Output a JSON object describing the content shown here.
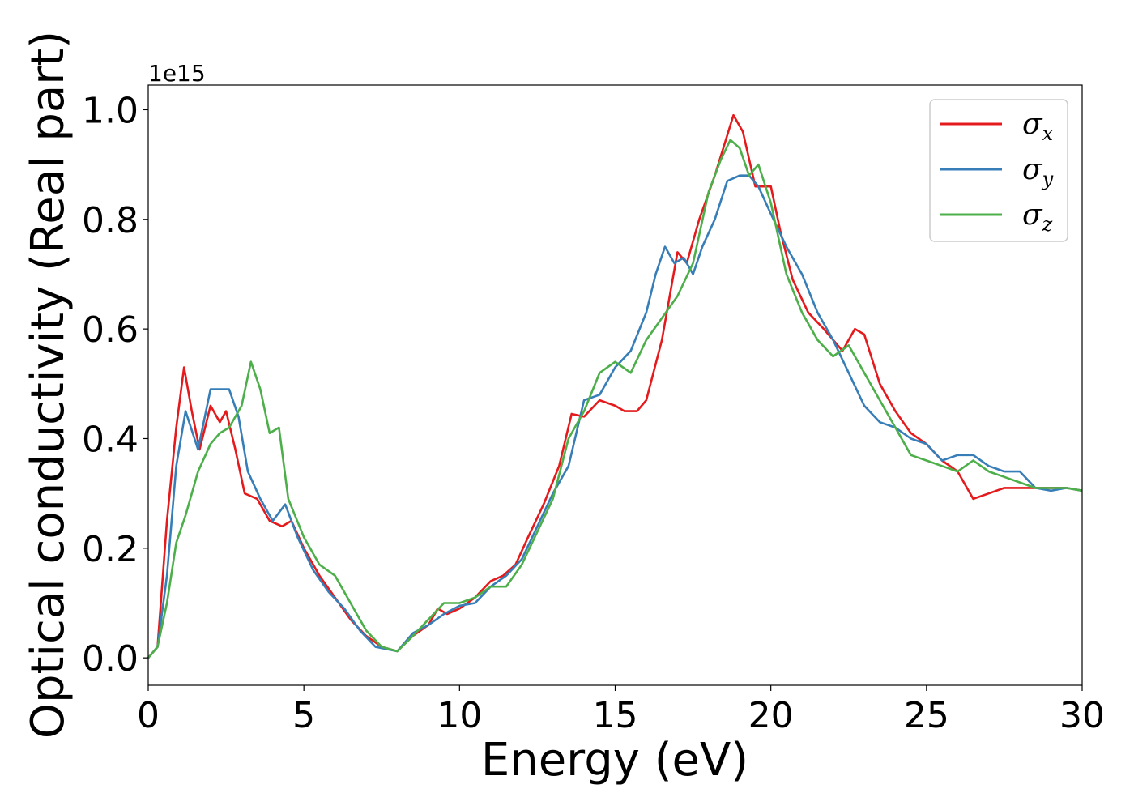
{
  "chart_data": {
    "type": "line",
    "xlabel": "Energy (eV)",
    "ylabel": "Optical conductivity (Real part)",
    "y_offset_text": "1e15",
    "xlim": [
      0,
      30
    ],
    "ylim": [
      -0.05,
      1.045
    ],
    "x_ticks": [
      0,
      5,
      10,
      15,
      20,
      25,
      30
    ],
    "x_tick_labels": [
      "0",
      "5",
      "10",
      "15",
      "20",
      "25",
      "30"
    ],
    "y_ticks": [
      0.0,
      0.2,
      0.4,
      0.6,
      0.8,
      1.0
    ],
    "y_tick_labels": [
      "0.0",
      "0.2",
      "0.4",
      "0.6",
      "0.8",
      "1.0"
    ],
    "grid": false,
    "legend_position": "top-right",
    "series": [
      {
        "name": "σx",
        "symbol": "σ",
        "subscript": "x",
        "color": "#e41a1c",
        "points": [
          [
            0,
            0
          ],
          [
            0.3,
            0.02
          ],
          [
            0.6,
            0.25
          ],
          [
            0.9,
            0.42
          ],
          [
            1.15,
            0.53
          ],
          [
            1.4,
            0.45
          ],
          [
            1.65,
            0.38
          ],
          [
            2.0,
            0.46
          ],
          [
            2.3,
            0.43
          ],
          [
            2.5,
            0.45
          ],
          [
            2.8,
            0.38
          ],
          [
            3.1,
            0.3
          ],
          [
            3.5,
            0.29
          ],
          [
            3.9,
            0.25
          ],
          [
            4.3,
            0.24
          ],
          [
            4.6,
            0.25
          ],
          [
            5.0,
            0.2
          ],
          [
            5.5,
            0.15
          ],
          [
            6.0,
            0.11
          ],
          [
            6.5,
            0.07
          ],
          [
            7.0,
            0.04
          ],
          [
            7.5,
            0.02
          ],
          [
            8.0,
            0.012
          ],
          [
            8.5,
            0.04
          ],
          [
            9.0,
            0.06
          ],
          [
            9.3,
            0.09
          ],
          [
            9.6,
            0.08
          ],
          [
            10.0,
            0.09
          ],
          [
            10.5,
            0.11
          ],
          [
            11.0,
            0.14
          ],
          [
            11.4,
            0.15
          ],
          [
            11.8,
            0.17
          ],
          [
            12.2,
            0.22
          ],
          [
            12.7,
            0.28
          ],
          [
            13.2,
            0.35
          ],
          [
            13.6,
            0.445
          ],
          [
            14.0,
            0.44
          ],
          [
            14.5,
            0.47
          ],
          [
            15.0,
            0.46
          ],
          [
            15.3,
            0.45
          ],
          [
            15.7,
            0.45
          ],
          [
            16.0,
            0.47
          ],
          [
            16.5,
            0.58
          ],
          [
            17.0,
            0.74
          ],
          [
            17.3,
            0.72
          ],
          [
            17.7,
            0.8
          ],
          [
            18.2,
            0.88
          ],
          [
            18.8,
            0.99
          ],
          [
            19.1,
            0.96
          ],
          [
            19.5,
            0.86
          ],
          [
            20.0,
            0.86
          ],
          [
            20.3,
            0.78
          ],
          [
            20.7,
            0.69
          ],
          [
            21.2,
            0.63
          ],
          [
            21.7,
            0.6
          ],
          [
            22.3,
            0.56
          ],
          [
            22.7,
            0.6
          ],
          [
            23.0,
            0.59
          ],
          [
            23.5,
            0.5
          ],
          [
            24.0,
            0.45
          ],
          [
            24.5,
            0.41
          ],
          [
            25.0,
            0.39
          ],
          [
            25.5,
            0.36
          ],
          [
            26.0,
            0.34
          ],
          [
            26.5,
            0.29
          ],
          [
            27.0,
            0.3
          ],
          [
            27.5,
            0.31
          ],
          [
            28.0,
            0.31
          ],
          [
            28.5,
            0.31
          ],
          [
            29.0,
            0.31
          ],
          [
            29.5,
            0.31
          ],
          [
            30.0,
            0.305
          ]
        ]
      },
      {
        "name": "σy",
        "symbol": "σ",
        "subscript": "y",
        "color": "#377eb8",
        "points": [
          [
            0,
            0
          ],
          [
            0.3,
            0.02
          ],
          [
            0.6,
            0.15
          ],
          [
            0.9,
            0.35
          ],
          [
            1.2,
            0.45
          ],
          [
            1.6,
            0.38
          ],
          [
            2.0,
            0.49
          ],
          [
            2.3,
            0.49
          ],
          [
            2.6,
            0.49
          ],
          [
            2.9,
            0.44
          ],
          [
            3.2,
            0.34
          ],
          [
            3.6,
            0.29
          ],
          [
            4.0,
            0.25
          ],
          [
            4.4,
            0.28
          ],
          [
            4.8,
            0.22
          ],
          [
            5.3,
            0.16
          ],
          [
            5.8,
            0.12
          ],
          [
            6.3,
            0.09
          ],
          [
            6.8,
            0.05
          ],
          [
            7.3,
            0.02
          ],
          [
            8.0,
            0.012
          ],
          [
            8.5,
            0.045
          ],
          [
            9.0,
            0.06
          ],
          [
            9.5,
            0.08
          ],
          [
            10.0,
            0.095
          ],
          [
            10.5,
            0.1
          ],
          [
            11.0,
            0.13
          ],
          [
            11.5,
            0.15
          ],
          [
            12.0,
            0.18
          ],
          [
            12.5,
            0.24
          ],
          [
            13.0,
            0.3
          ],
          [
            13.5,
            0.35
          ],
          [
            14.0,
            0.47
          ],
          [
            14.5,
            0.48
          ],
          [
            15.0,
            0.53
          ],
          [
            15.5,
            0.56
          ],
          [
            16.0,
            0.63
          ],
          [
            16.3,
            0.7
          ],
          [
            16.6,
            0.75
          ],
          [
            16.9,
            0.72
          ],
          [
            17.2,
            0.73
          ],
          [
            17.5,
            0.7
          ],
          [
            17.8,
            0.75
          ],
          [
            18.2,
            0.8
          ],
          [
            18.6,
            0.87
          ],
          [
            19.0,
            0.88
          ],
          [
            19.3,
            0.88
          ],
          [
            19.6,
            0.86
          ],
          [
            20.0,
            0.81
          ],
          [
            20.5,
            0.75
          ],
          [
            21.0,
            0.7
          ],
          [
            21.5,
            0.63
          ],
          [
            22.0,
            0.58
          ],
          [
            22.5,
            0.52
          ],
          [
            23.0,
            0.46
          ],
          [
            23.5,
            0.43
          ],
          [
            24.0,
            0.42
          ],
          [
            24.5,
            0.4
          ],
          [
            25.0,
            0.39
          ],
          [
            25.5,
            0.36
          ],
          [
            26.0,
            0.37
          ],
          [
            26.5,
            0.37
          ],
          [
            27.0,
            0.35
          ],
          [
            27.5,
            0.34
          ],
          [
            28.0,
            0.34
          ],
          [
            28.5,
            0.31
          ],
          [
            29.0,
            0.305
          ],
          [
            29.5,
            0.31
          ],
          [
            30.0,
            0.305
          ]
        ]
      },
      {
        "name": "σz",
        "symbol": "σ",
        "subscript": "z",
        "color": "#4daf4a",
        "points": [
          [
            0,
            0
          ],
          [
            0.3,
            0.02
          ],
          [
            0.6,
            0.1
          ],
          [
            0.9,
            0.21
          ],
          [
            1.2,
            0.26
          ],
          [
            1.6,
            0.34
          ],
          [
            2.0,
            0.39
          ],
          [
            2.3,
            0.41
          ],
          [
            2.6,
            0.42
          ],
          [
            3.0,
            0.46
          ],
          [
            3.3,
            0.54
          ],
          [
            3.6,
            0.49
          ],
          [
            3.9,
            0.41
          ],
          [
            4.2,
            0.42
          ],
          [
            4.5,
            0.29
          ],
          [
            5.0,
            0.22
          ],
          [
            5.5,
            0.17
          ],
          [
            6.0,
            0.15
          ],
          [
            6.5,
            0.1
          ],
          [
            7.0,
            0.05
          ],
          [
            7.5,
            0.02
          ],
          [
            8.0,
            0.012
          ],
          [
            8.5,
            0.04
          ],
          [
            9.0,
            0.07
          ],
          [
            9.5,
            0.1
          ],
          [
            10.0,
            0.1
          ],
          [
            10.5,
            0.11
          ],
          [
            11.0,
            0.13
          ],
          [
            11.5,
            0.13
          ],
          [
            12.0,
            0.17
          ],
          [
            12.5,
            0.23
          ],
          [
            13.0,
            0.29
          ],
          [
            13.5,
            0.4
          ],
          [
            14.0,
            0.45
          ],
          [
            14.5,
            0.52
          ],
          [
            15.0,
            0.54
          ],
          [
            15.5,
            0.52
          ],
          [
            16.0,
            0.58
          ],
          [
            16.5,
            0.62
          ],
          [
            17.0,
            0.66
          ],
          [
            17.5,
            0.72
          ],
          [
            18.0,
            0.85
          ],
          [
            18.4,
            0.91
          ],
          [
            18.7,
            0.945
          ],
          [
            19.0,
            0.93
          ],
          [
            19.3,
            0.88
          ],
          [
            19.6,
            0.9
          ],
          [
            20.0,
            0.83
          ],
          [
            20.5,
            0.7
          ],
          [
            21.0,
            0.63
          ],
          [
            21.5,
            0.58
          ],
          [
            22.0,
            0.55
          ],
          [
            22.5,
            0.57
          ],
          [
            23.0,
            0.52
          ],
          [
            23.5,
            0.47
          ],
          [
            24.0,
            0.42
          ],
          [
            24.5,
            0.37
          ],
          [
            25.0,
            0.36
          ],
          [
            25.5,
            0.35
          ],
          [
            26.0,
            0.34
          ],
          [
            26.5,
            0.36
          ],
          [
            27.0,
            0.34
          ],
          [
            27.5,
            0.33
          ],
          [
            28.0,
            0.32
          ],
          [
            28.5,
            0.31
          ],
          [
            29.0,
            0.31
          ],
          [
            29.5,
            0.31
          ],
          [
            30.0,
            0.305
          ]
        ]
      }
    ]
  }
}
